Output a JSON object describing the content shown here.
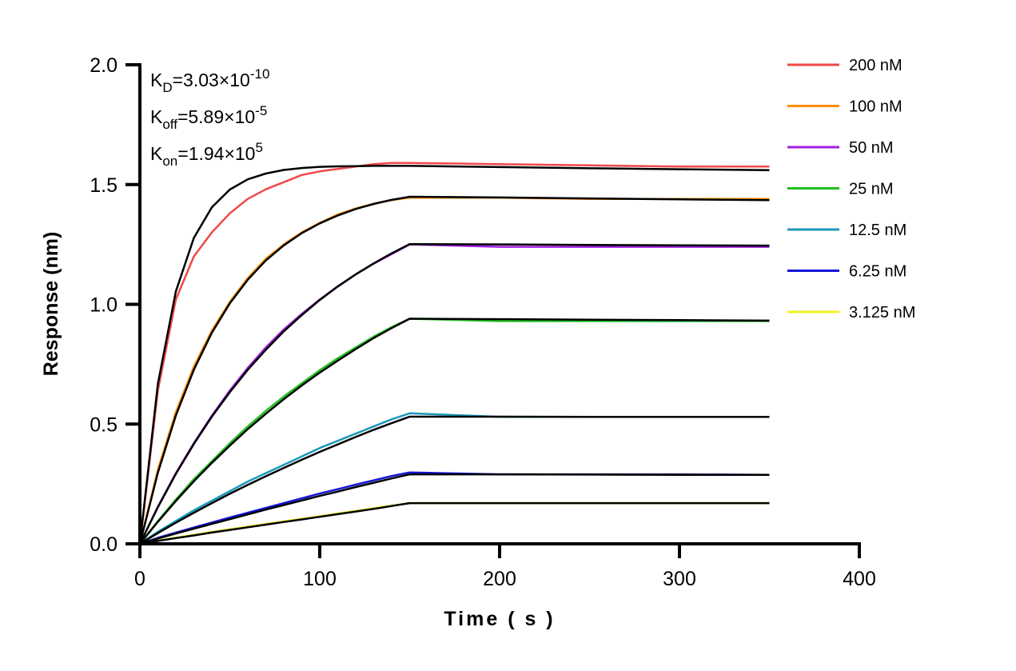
{
  "chart_data": {
    "type": "line",
    "xlabel": "Time ( s )",
    "ylabel": "Response (nm)",
    "xlim": [
      0,
      400
    ],
    "ylim": [
      0,
      2.0
    ],
    "xticks": [
      0,
      100,
      200,
      300,
      400
    ],
    "xtick_labels": [
      "0",
      "100",
      "200",
      "300",
      "400"
    ],
    "yticks": [
      0,
      0.5,
      1.0,
      1.5,
      2.0
    ],
    "ytick_labels": [
      "0.0",
      "0.5",
      "1.0",
      "1.5",
      "2.0"
    ],
    "grid": false,
    "legend_placement": "right",
    "annotations": [
      {
        "base": "K",
        "sub": "D",
        "rest": "=3.03×10",
        "sup": "-10"
      },
      {
        "base": "K",
        "sub": "off",
        "rest": "=5.89×10",
        "sup": "-5"
      },
      {
        "base": "K",
        "sub": "on",
        "rest": "=1.94×10",
        "sup": "5"
      }
    ],
    "x": [
      0,
      10,
      20,
      30,
      40,
      50,
      60,
      70,
      80,
      90,
      100,
      110,
      120,
      130,
      140,
      150,
      200,
      250,
      300,
      350
    ],
    "fit_color": "#000000",
    "series": [
      {
        "name": "200 nM",
        "color": "#f04848",
        "values": [
          0,
          0.64,
          1.02,
          1.2,
          1.3,
          1.38,
          1.44,
          1.48,
          1.51,
          1.54,
          1.555,
          1.565,
          1.575,
          1.585,
          1.59,
          1.59,
          1.585,
          1.58,
          1.575,
          1.575
        ],
        "fit": [
          0,
          0.668,
          1.054,
          1.277,
          1.405,
          1.479,
          1.522,
          1.546,
          1.561,
          1.569,
          1.574,
          1.576,
          1.577,
          1.578,
          1.578,
          1.578,
          1.573,
          1.568,
          1.564,
          1.56
        ]
      },
      {
        "name": "100 nM",
        "color": "#ff8c00",
        "values": [
          0,
          0.31,
          0.55,
          0.74,
          0.89,
          1.01,
          1.11,
          1.19,
          1.25,
          1.3,
          1.34,
          1.375,
          1.4,
          1.42,
          1.435,
          1.445,
          1.445,
          1.44,
          1.44,
          1.44
        ],
        "fit": [
          0,
          0.297,
          0.536,
          0.727,
          0.881,
          1.004,
          1.103,
          1.183,
          1.246,
          1.297,
          1.338,
          1.371,
          1.398,
          1.419,
          1.436,
          1.449,
          1.446,
          1.442,
          1.438,
          1.435
        ]
      },
      {
        "name": "50 nM",
        "color": "#a020e0",
        "values": [
          0,
          0.155,
          0.295,
          0.42,
          0.535,
          0.64,
          0.735,
          0.82,
          0.895,
          0.96,
          1.02,
          1.075,
          1.125,
          1.17,
          1.21,
          1.25,
          1.24,
          1.24,
          1.24,
          1.24
        ],
        "fit": [
          0,
          0.153,
          0.292,
          0.417,
          0.531,
          0.633,
          0.727,
          0.81,
          0.887,
          0.955,
          1.018,
          1.074,
          1.125,
          1.171,
          1.213,
          1.251,
          1.25,
          1.248,
          1.246,
          1.245
        ]
      },
      {
        "name": "25 nM",
        "color": "#20c020",
        "values": [
          0,
          0.095,
          0.185,
          0.27,
          0.345,
          0.42,
          0.49,
          0.555,
          0.615,
          0.67,
          0.725,
          0.775,
          0.82,
          0.865,
          0.905,
          0.94,
          0.93,
          0.93,
          0.93,
          0.93
        ],
        "fit": [
          0,
          0.092,
          0.179,
          0.261,
          0.338,
          0.41,
          0.479,
          0.543,
          0.604,
          0.661,
          0.715,
          0.765,
          0.813,
          0.859,
          0.901,
          0.94,
          0.938,
          0.936,
          0.934,
          0.932
        ]
      },
      {
        "name": "12.5 nM",
        "color": "#1a9ab8",
        "values": [
          0,
          0.05,
          0.095,
          0.14,
          0.18,
          0.22,
          0.26,
          0.295,
          0.33,
          0.365,
          0.4,
          0.43,
          0.46,
          0.49,
          0.52,
          0.545,
          0.53,
          0.53,
          0.53,
          0.53
        ],
        "fit": [
          0,
          0.045,
          0.088,
          0.13,
          0.17,
          0.209,
          0.246,
          0.282,
          0.317,
          0.351,
          0.384,
          0.415,
          0.446,
          0.476,
          0.504,
          0.531,
          0.531,
          0.53,
          0.53,
          0.53
        ]
      },
      {
        "name": "6.25 nM",
        "color": "#1414d8",
        "values": [
          0,
          0.025,
          0.047,
          0.068,
          0.089,
          0.11,
          0.13,
          0.15,
          0.17,
          0.19,
          0.21,
          0.228,
          0.247,
          0.265,
          0.283,
          0.298,
          0.29,
          0.29,
          0.29,
          0.288
        ],
        "fit": [
          0,
          0.022,
          0.043,
          0.063,
          0.083,
          0.103,
          0.123,
          0.143,
          0.162,
          0.181,
          0.2,
          0.218,
          0.237,
          0.255,
          0.273,
          0.29,
          0.29,
          0.289,
          0.288,
          0.288
        ]
      },
      {
        "name": "3.125 nM",
        "color": "#f0f020",
        "values": [
          0,
          0.014,
          0.026,
          0.038,
          0.05,
          0.061,
          0.072,
          0.083,
          0.094,
          0.105,
          0.116,
          0.127,
          0.138,
          0.149,
          0.16,
          0.17,
          0.17,
          0.17,
          0.17,
          0.17
        ],
        "fit": [
          0,
          0.012,
          0.024,
          0.035,
          0.047,
          0.058,
          0.069,
          0.08,
          0.091,
          0.102,
          0.113,
          0.124,
          0.135,
          0.146,
          0.158,
          0.17,
          0.17,
          0.17,
          0.17,
          0.17
        ]
      }
    ]
  }
}
